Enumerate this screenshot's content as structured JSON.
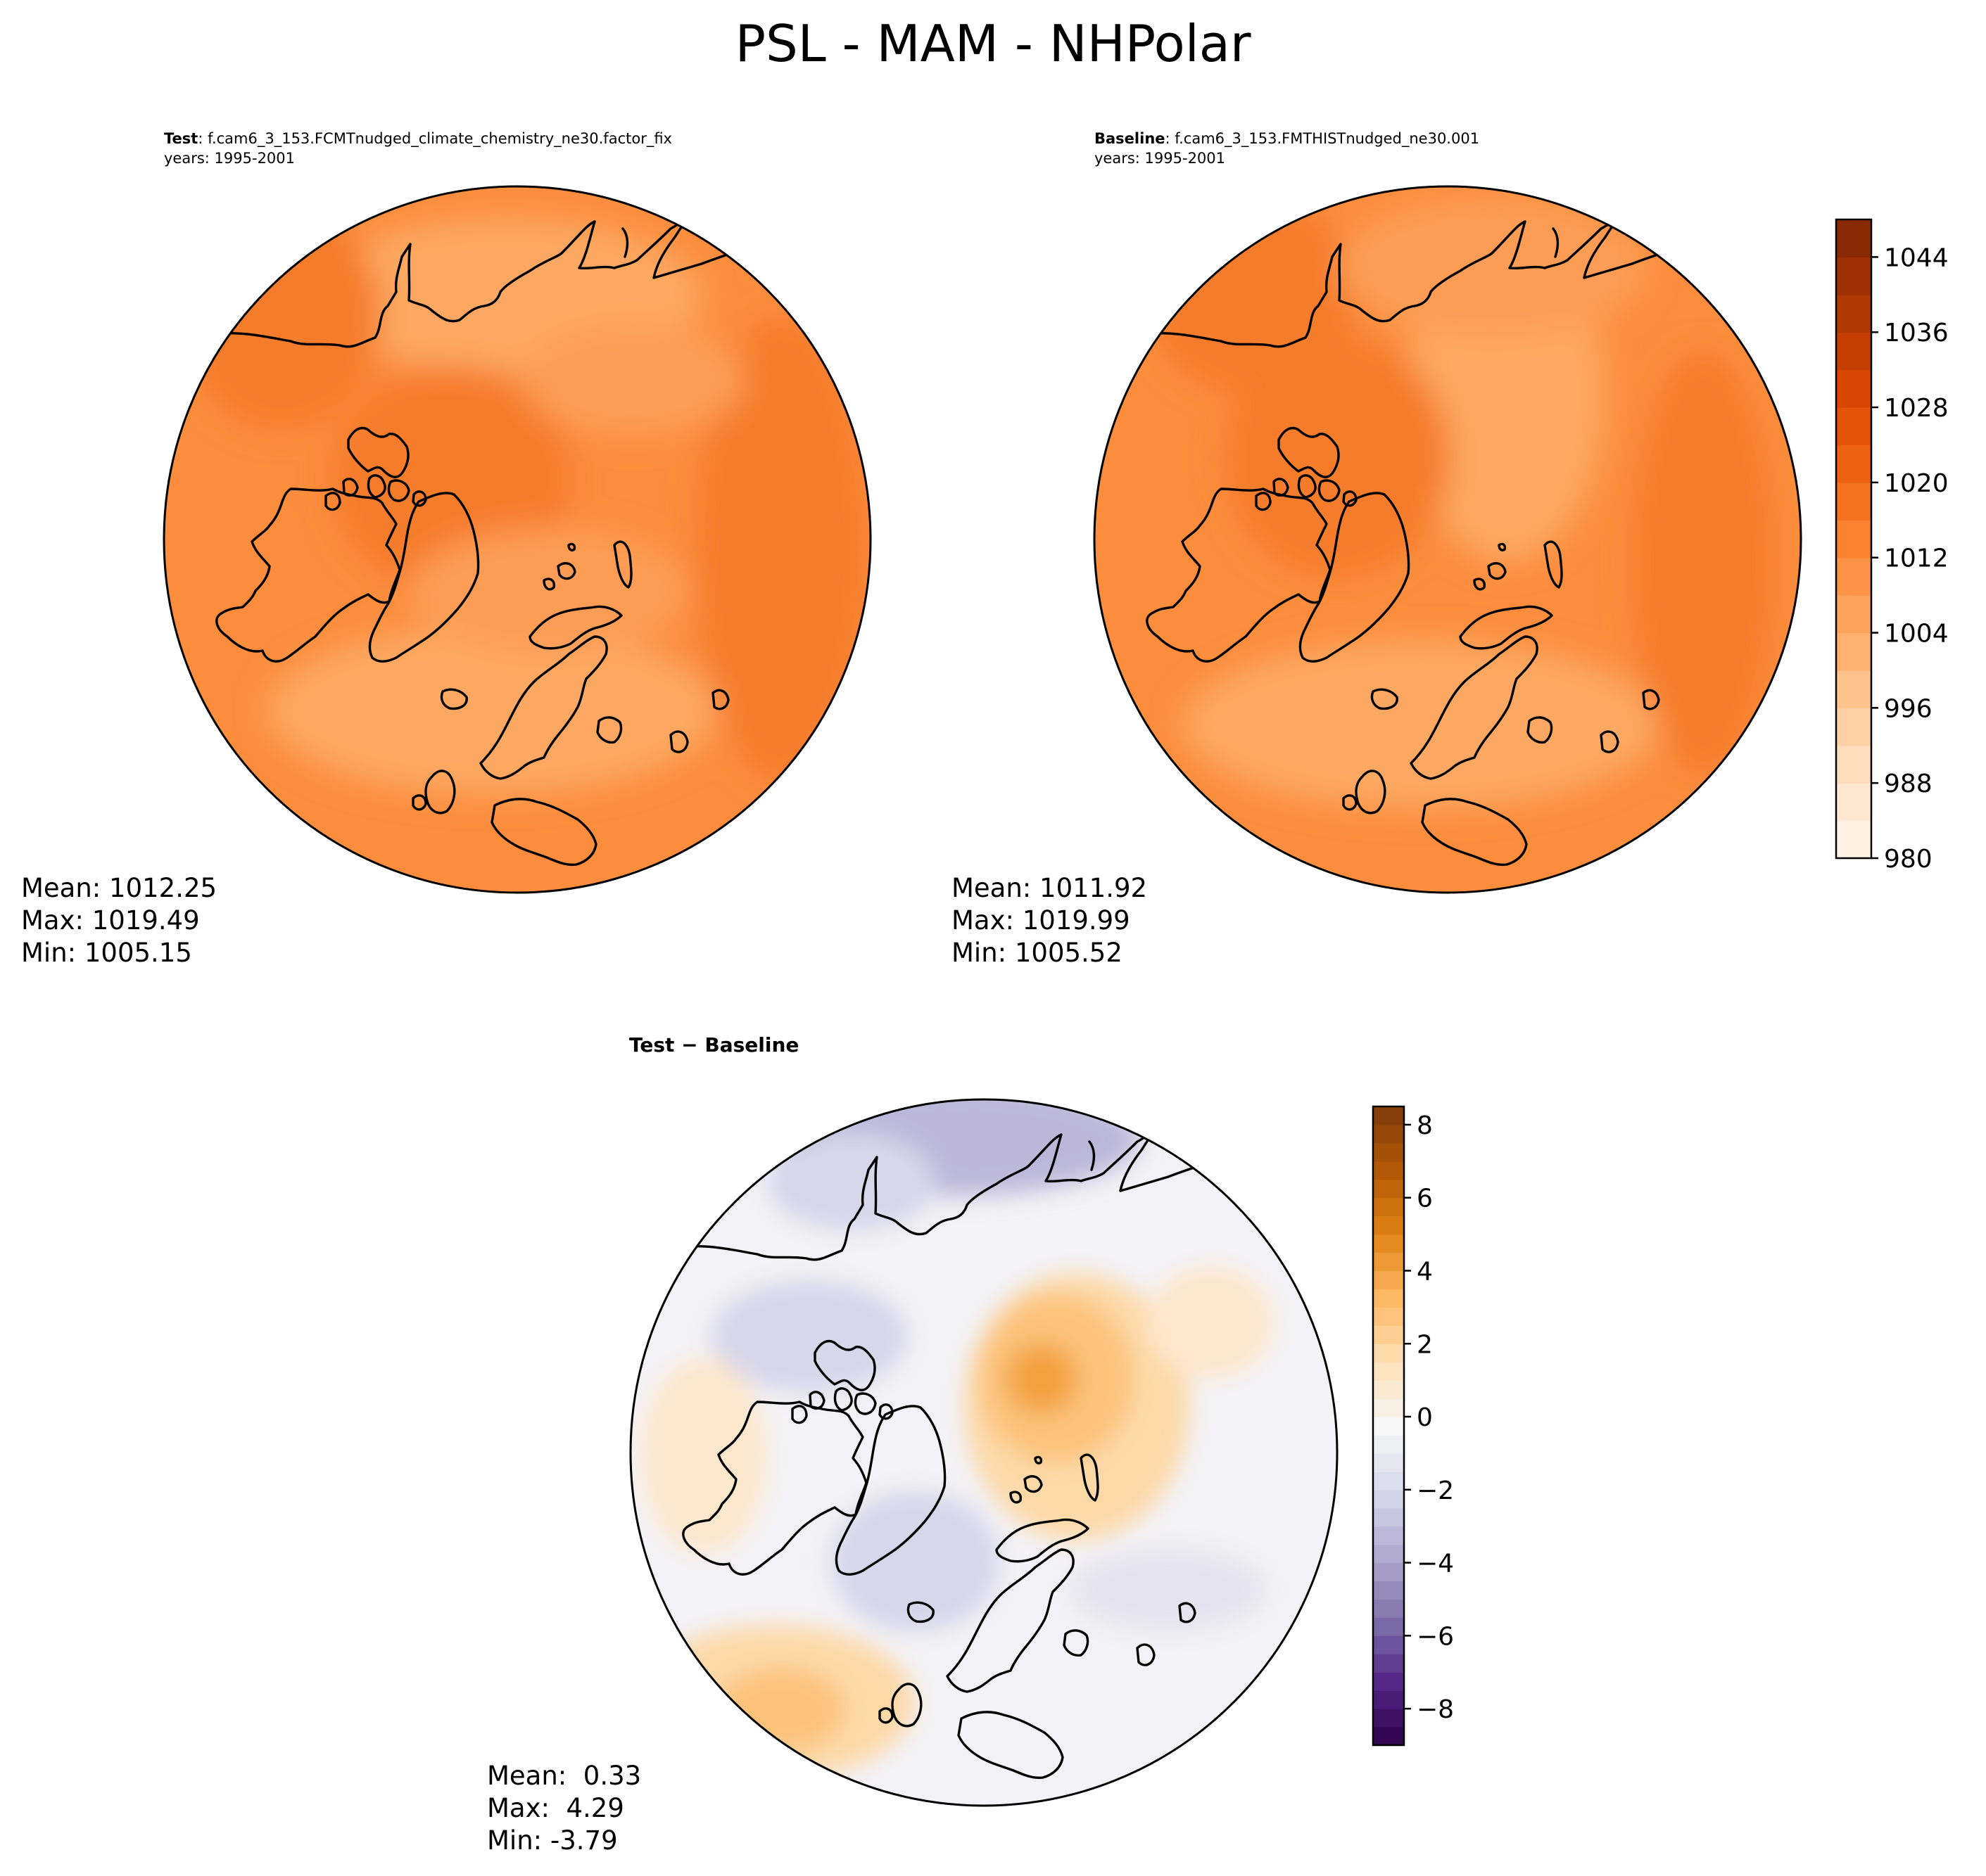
{
  "figure": {
    "title": "PSL - MAM - NHPolar"
  },
  "panels": {
    "test": {
      "label": "Test",
      "case": ": f.cam6_3_153.FCMTnudged_climate_chemistry_ne30.factor_fix",
      "years": "years: 1995-2001",
      "stats": {
        "mean": "Mean: 1012.25",
        "max": "Max: 1019.49",
        "min": "Min: 1005.15"
      }
    },
    "baseline": {
      "label": "Baseline",
      "case": ": f.cam6_3_153.FMTHISTnudged_ne30.001",
      "years": "years: 1995-2001",
      "stats": {
        "mean": "Mean: 1011.92",
        "max": "Max: 1019.99",
        "min": "Min: 1005.52"
      }
    },
    "difference": {
      "title": "Test − Baseline",
      "stats": {
        "mean": "Mean:  0.33",
        "max": "Max:  4.29",
        "min": "Min: -3.79"
      }
    }
  },
  "colorbars": {
    "absolute": {
      "colormap": "Oranges",
      "range": [
        980,
        1048
      ],
      "ticks": [
        "980",
        "988",
        "996",
        "1004",
        "1012",
        "1020",
        "1028",
        "1036",
        "1044"
      ],
      "colors": [
        "#fff5eb",
        "#fee9d4",
        "#fdd9b4",
        "#fdc794",
        "#fdae6b",
        "#fd9b50",
        "#f9812f",
        "#f26b15",
        "#e5550a",
        "#d44400",
        "#b63b02",
        "#9b3003",
        "#7f2704"
      ]
    },
    "difference": {
      "colormap": "PuOr_r",
      "range": [
        -9,
        8.5
      ],
      "ticks": [
        "−8",
        "−6",
        "−4",
        "−2",
        "0",
        "2",
        "4",
        "6",
        "8"
      ],
      "colors": [
        "#2d004b",
        "#542788",
        "#8073ac",
        "#b2abd2",
        "#d8daeb",
        "#f7f7f7",
        "#fee0b6",
        "#fdb863",
        "#e08214",
        "#b35806",
        "#7f3b08"
      ]
    }
  }
}
